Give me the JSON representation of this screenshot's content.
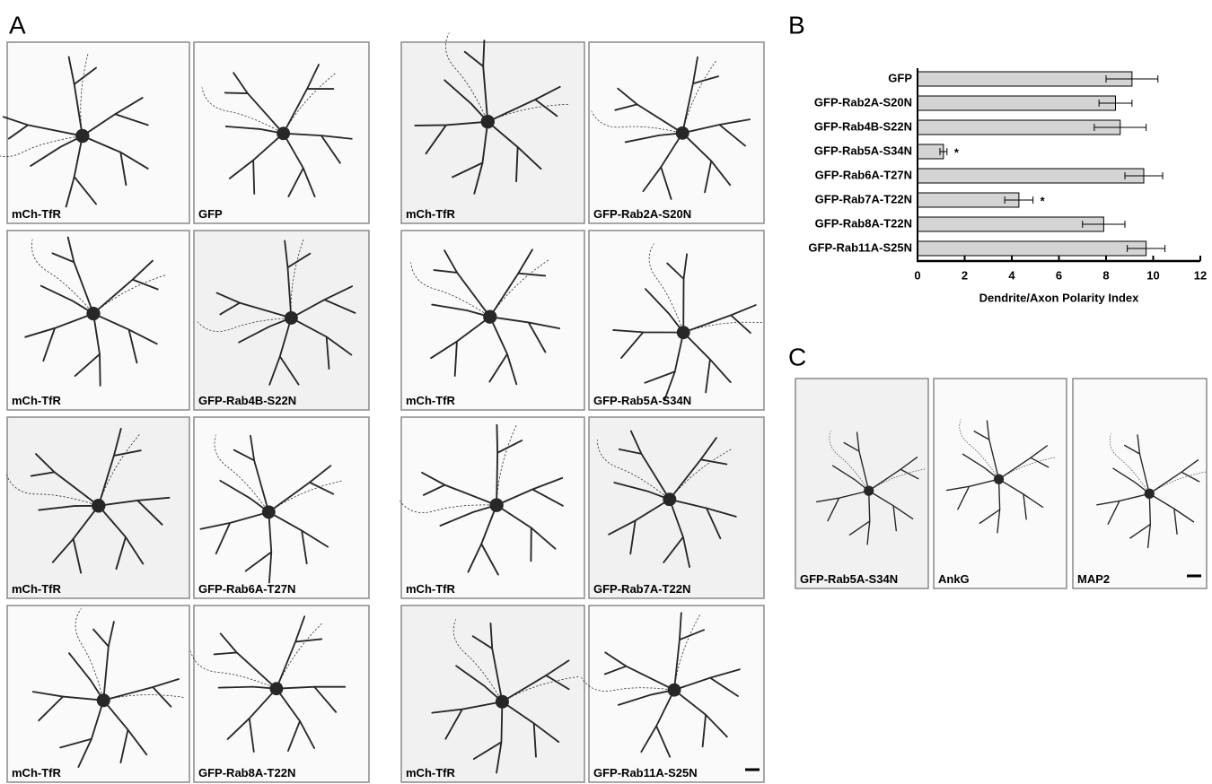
{
  "panel_labels": [
    "A",
    "B",
    "C"
  ],
  "panel_a": {
    "images": [
      "mCh-TfR",
      "GFP",
      "mCh-TfR",
      "GFP-Rab2A-S20N",
      "mCh-TfR",
      "GFP-Rab4B-S22N",
      "mCh-TfR",
      "GFP-Rab5A-S34N",
      "mCh-TfR",
      "GFP-Rab6A-T27N",
      "mCh-TfR",
      "GFP-Rab7A-T22N",
      "mCh-TfR",
      "GFP-Rab8A-T22N",
      "mCh-TfR",
      "GFP-Rab11A-S25N"
    ]
  },
  "chart_data": {
    "type": "hbar",
    "xlabel": "Dendrite/Axon Polarity Index",
    "categories": [
      "GFP",
      "GFP-Rab2A-S20N",
      "GFP-Rab4B-S22N",
      "GFP-Rab5A-S34N",
      "GFP-Rab6A-T27N",
      "GFP-Rab7A-T22N",
      "GFP-Rab8A-T22N",
      "GFP-Rab11A-S25N"
    ],
    "values": [
      9.1,
      8.4,
      8.6,
      1.1,
      9.6,
      4.3,
      7.9,
      9.7
    ],
    "errors": [
      1.1,
      0.7,
      1.1,
      0.15,
      0.8,
      0.6,
      0.9,
      0.8
    ],
    "significance": [
      null,
      null,
      null,
      "*",
      null,
      "*",
      null,
      null
    ],
    "color": "#d4d4d4",
    "xlim": [
      0,
      12
    ],
    "xticks": [
      0,
      2,
      4,
      6,
      8,
      10,
      12
    ]
  },
  "panel_c": {
    "images": [
      "GFP-Rab5A-S34N",
      "AnkG",
      "MAP2"
    ]
  }
}
